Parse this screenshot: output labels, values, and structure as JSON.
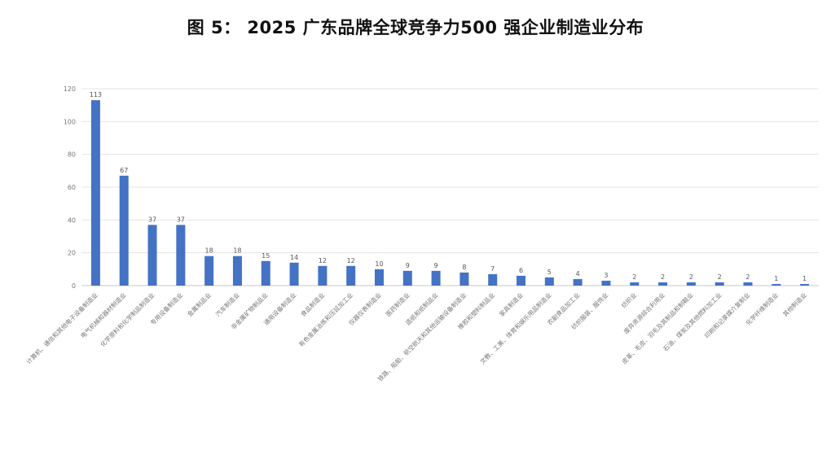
{
  "chart_data": {
    "type": "bar",
    "title": "图 5： 2025 广东品牌全球竞争力500 强企业制造业分布",
    "xlabel": "",
    "ylabel": "",
    "ylim": [
      0,
      120
    ],
    "yticks": [
      0,
      20,
      40,
      60,
      80,
      100,
      120
    ],
    "grid": true,
    "bar_color": "#4472C4",
    "categories": [
      "计算机、通信和其他电子设备制造业",
      "电气机械和器材制造业",
      "化学原料和化学制品制造业",
      "专用设备制造业",
      "金属制品业",
      "汽车制造业",
      "非金属矿物制品业",
      "通用设备制造业",
      "食品制造业",
      "有色金属冶炼和压延加工业",
      "仪器仪表制造业",
      "医药制造业",
      "造纸和纸制品业",
      "铁路、船舶、航空航天和其他运输设备制造业",
      "橡胶和塑料制品业",
      "家具制造业",
      "文教、工美、体育和娱乐用品制造业",
      "农副食品加工业",
      "纺织服装、服饰业",
      "纺织业",
      "废弃资源综合利用业",
      "皮革、毛皮、羽毛及其制品和制鞋业",
      "石油、煤炭及其他燃料加工业",
      "印刷和记录媒介复制业",
      "化学纤维制造业",
      "其他制造业"
    ],
    "values": [
      113,
      67,
      37,
      37,
      18,
      18,
      15,
      14,
      12,
      12,
      10,
      9,
      9,
      8,
      7,
      6,
      5,
      4,
      3,
      2,
      2,
      2,
      2,
      2,
      1,
      1
    ]
  }
}
